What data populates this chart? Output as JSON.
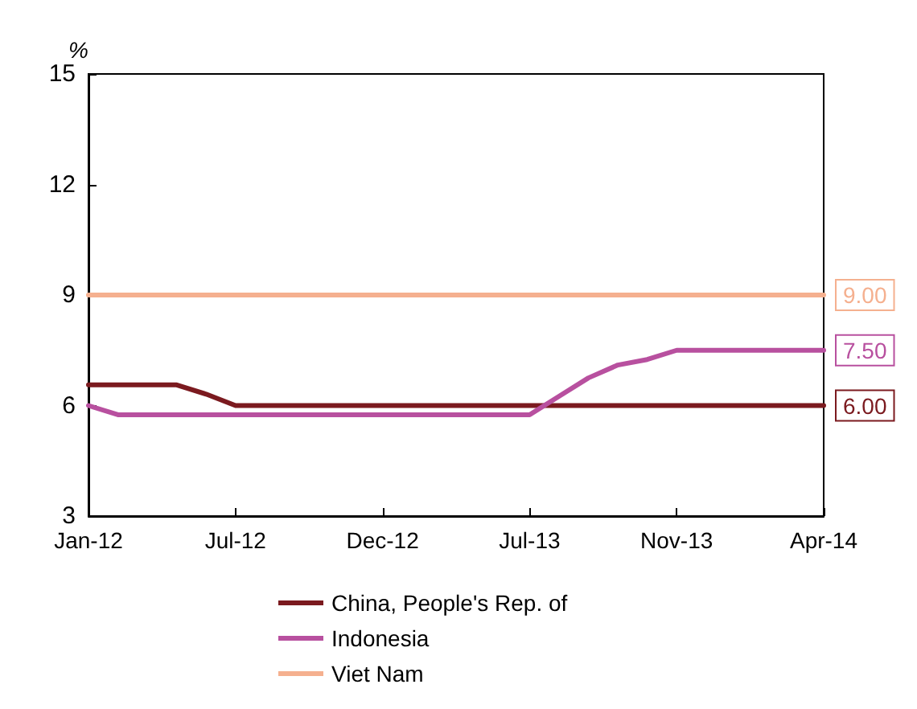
{
  "chart_data": {
    "type": "line",
    "ylabel": "%",
    "categories": [
      "Jan-12",
      null,
      null,
      null,
      null,
      "Jul-12",
      null,
      null,
      null,
      null,
      "Dec-12",
      null,
      null,
      null,
      null,
      "Jul-13",
      null,
      null,
      null,
      null,
      "Nov-13",
      null,
      null,
      null,
      null,
      "Apr-14"
    ],
    "ylim": [
      3,
      15
    ],
    "yticks": [
      3,
      6,
      9,
      12,
      15
    ],
    "grid": false,
    "legend": "bottom",
    "marker": "none",
    "line_style": "solid",
    "series": [
      {
        "name": "China, People's Rep. of",
        "color": "#7b1a1f",
        "values": [
          6.56,
          6.56,
          6.56,
          6.56,
          6.31,
          6.0,
          6.0,
          6.0,
          6.0,
          6.0,
          6.0,
          6.0,
          6.0,
          6.0,
          6.0,
          6.0,
          6.0,
          6.0,
          6.0,
          6.0,
          6.0,
          6.0,
          6.0,
          6.0,
          6.0,
          6.0
        ],
        "value_labels": [
          null,
          null,
          null,
          null,
          null,
          null,
          null,
          null,
          null,
          null,
          null,
          null,
          null,
          null,
          null,
          null,
          null,
          null,
          null,
          null,
          null,
          null,
          null,
          null,
          null,
          "6.00"
        ]
      },
      {
        "name": "Indonesia",
        "color": "#b8509f",
        "values": [
          6.0,
          5.75,
          5.75,
          5.75,
          5.75,
          5.75,
          5.75,
          5.75,
          5.75,
          5.75,
          5.75,
          5.75,
          5.75,
          5.75,
          5.75,
          5.75,
          6.25,
          6.75,
          7.1,
          7.25,
          7.5,
          7.5,
          7.5,
          7.5,
          7.5,
          7.5
        ],
        "value_labels": [
          null,
          null,
          null,
          null,
          null,
          null,
          null,
          null,
          null,
          null,
          null,
          null,
          null,
          null,
          null,
          null,
          null,
          null,
          null,
          null,
          null,
          null,
          null,
          null,
          null,
          "7.50"
        ]
      },
      {
        "name": "Viet Nam",
        "color": "#f5b08f",
        "values": [
          9,
          9,
          9,
          9,
          9,
          9,
          9,
          9,
          9,
          9,
          9,
          9,
          9,
          9,
          9,
          9,
          9,
          9,
          9,
          9,
          9,
          9,
          9,
          9,
          9,
          9
        ],
        "value_labels": [
          null,
          null,
          null,
          null,
          null,
          null,
          null,
          null,
          null,
          null,
          null,
          null,
          null,
          null,
          null,
          null,
          null,
          null,
          null,
          null,
          null,
          null,
          null,
          null,
          null,
          "9.00"
        ]
      }
    ]
  }
}
